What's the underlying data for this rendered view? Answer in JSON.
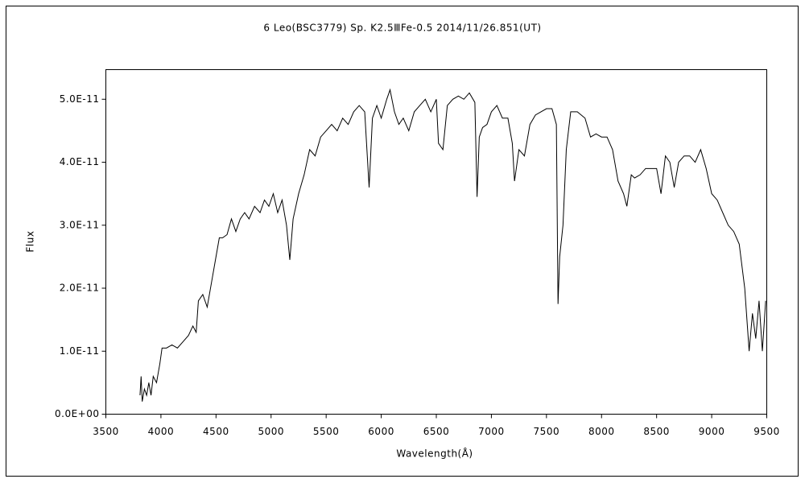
{
  "chart_data": {
    "type": "line",
    "title": "6 Leo(BSC3779)  Sp. K2.5ⅢFe-0.5  2014/11/26.851(UT)",
    "x_label": "Wavelength(Å)",
    "y_label": "Flux",
    "xlim": [
      3500,
      9500
    ],
    "xticks": [
      3500,
      4000,
      4500,
      5000,
      5500,
      6000,
      6500,
      7000,
      7500,
      8000,
      8500,
      9000,
      9500
    ],
    "ylim": [
      0,
      5.47e-11
    ],
    "yticks": [
      {
        "value": 0,
        "label": "0.0E+00"
      },
      {
        "value": 1e-11,
        "label": "1.0E-11"
      },
      {
        "value": 2e-11,
        "label": "2.0E-11"
      },
      {
        "value": 3e-11,
        "label": "3.0E-11"
      },
      {
        "value": 4e-11,
        "label": "4.0E-11"
      },
      {
        "value": 5e-11,
        "label": "5.0E-11"
      }
    ],
    "color": "#000000",
    "x": [
      3810,
      3820,
      3830,
      3850,
      3870,
      3890,
      3910,
      3930,
      3960,
      3990,
      4010,
      4050,
      4100,
      4150,
      4200,
      4250,
      4290,
      4320,
      4340,
      4380,
      4420,
      4460,
      4500,
      4530,
      4560,
      4600,
      4640,
      4680,
      4720,
      4760,
      4800,
      4850,
      4900,
      4940,
      4980,
      5020,
      5060,
      5100,
      5140,
      5170,
      5200,
      5250,
      5300,
      5350,
      5400,
      5450,
      5500,
      5550,
      5600,
      5650,
      5700,
      5750,
      5800,
      5850,
      5890,
      5920,
      5960,
      6000,
      6050,
      6080,
      6120,
      6160,
      6200,
      6250,
      6300,
      6350,
      6400,
      6450,
      6500,
      6520,
      6560,
      6600,
      6650,
      6700,
      6750,
      6800,
      6850,
      6870,
      6890,
      6920,
      6960,
      7000,
      7050,
      7100,
      7150,
      7190,
      7210,
      7250,
      7300,
      7350,
      7400,
      7450,
      7500,
      7550,
      7590,
      7605,
      7620,
      7650,
      7680,
      7720,
      7780,
      7850,
      7900,
      7950,
      8000,
      8050,
      8100,
      8150,
      8200,
      8230,
      8270,
      8300,
      8350,
      8400,
      8450,
      8500,
      8540,
      8580,
      8620,
      8660,
      8700,
      8750,
      8800,
      8850,
      8900,
      8950,
      9000,
      9050,
      9100,
      9150,
      9200,
      9250,
      9300,
      9340,
      9370,
      9400,
      9430,
      9460,
      9490
    ],
    "values": [
      3e-12,
      6e-12,
      2e-12,
      4e-12,
      3e-12,
      5e-12,
      3e-12,
      6e-12,
      5e-12,
      8e-12,
      1.05e-11,
      1.05e-11,
      1.1e-11,
      1.05e-11,
      1.15e-11,
      1.25e-11,
      1.4e-11,
      1.3e-11,
      1.8e-11,
      1.9e-11,
      1.7e-11,
      2.1e-11,
      2.5e-11,
      2.8e-11,
      2.8e-11,
      2.85e-11,
      3.1e-11,
      2.9e-11,
      3.1e-11,
      3.2e-11,
      3.1e-11,
      3.3e-11,
      3.2e-11,
      3.4e-11,
      3.3e-11,
      3.5e-11,
      3.2e-11,
      3.4e-11,
      3e-11,
      2.45e-11,
      3.1e-11,
      3.5e-11,
      3.8e-11,
      4.2e-11,
      4.1e-11,
      4.4e-11,
      4.5e-11,
      4.6e-11,
      4.5e-11,
      4.7e-11,
      4.6e-11,
      4.8e-11,
      4.9e-11,
      4.8e-11,
      3.6e-11,
      4.7e-11,
      4.9e-11,
      4.7e-11,
      5e-11,
      5.15e-11,
      4.8e-11,
      4.6e-11,
      4.7e-11,
      4.5e-11,
      4.8e-11,
      4.9e-11,
      5e-11,
      4.8e-11,
      5e-11,
      4.3e-11,
      4.2e-11,
      4.9e-11,
      5e-11,
      5.05e-11,
      5e-11,
      5.1e-11,
      4.95e-11,
      3.45e-11,
      4.4e-11,
      4.55e-11,
      4.6e-11,
      4.8e-11,
      4.9e-11,
      4.7e-11,
      4.7e-11,
      4.3e-11,
      3.7e-11,
      4.2e-11,
      4.1e-11,
      4.6e-11,
      4.75e-11,
      4.8e-11,
      4.85e-11,
      4.85e-11,
      4.6e-11,
      1.75e-11,
      2.5e-11,
      3e-11,
      4.2e-11,
      4.8e-11,
      4.8e-11,
      4.7e-11,
      4.4e-11,
      4.45e-11,
      4.4e-11,
      4.4e-11,
      4.2e-11,
      3.7e-11,
      3.5e-11,
      3.3e-11,
      3.8e-11,
      3.75e-11,
      3.8e-11,
      3.9e-11,
      3.9e-11,
      3.9e-11,
      3.5e-11,
      4.1e-11,
      4e-11,
      3.6e-11,
      4e-11,
      4.1e-11,
      4.1e-11,
      4e-11,
      4.2e-11,
      3.9e-11,
      3.5e-11,
      3.4e-11,
      3.2e-11,
      3e-11,
      2.9e-11,
      2.7e-11,
      2e-11,
      1e-11,
      1.6e-11,
      1.2e-11,
      1.8e-11,
      1e-11,
      1.8e-11
    ]
  }
}
